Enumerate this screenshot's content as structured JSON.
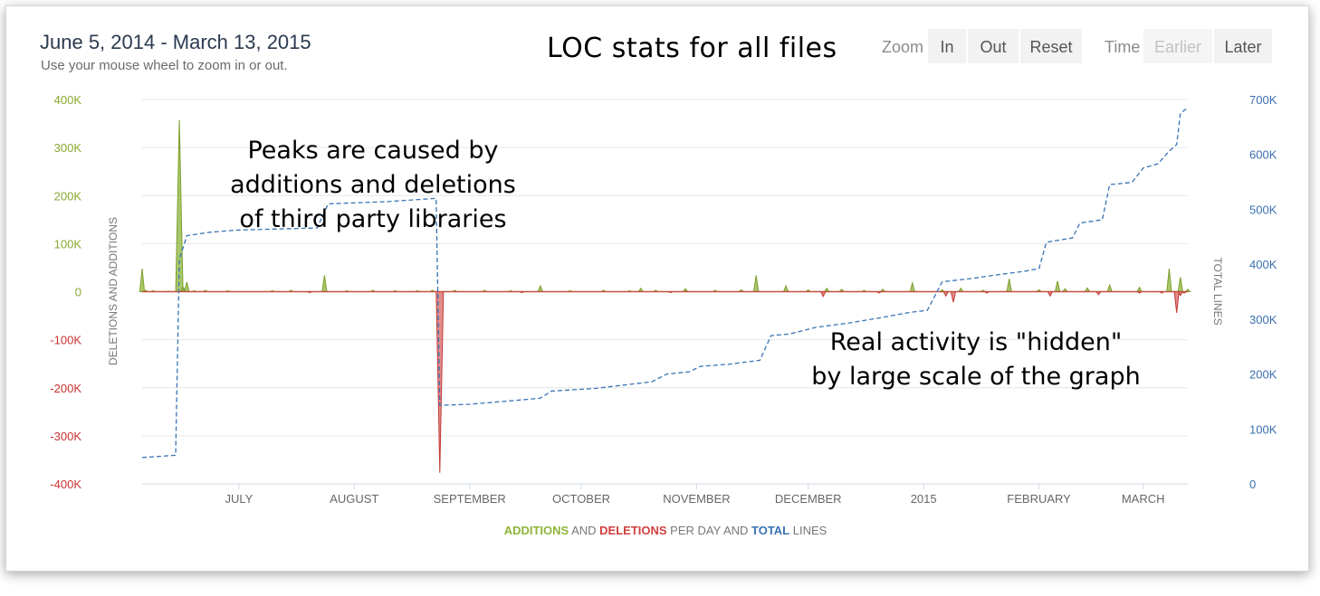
{
  "header": {
    "date_range": "June 5, 2014 - March 13, 2015",
    "hint": "Use your mouse wheel to zoom in or out.",
    "title": "LOC stats for all files"
  },
  "controls": {
    "zoom_label": "Zoom",
    "zoom_in": "In",
    "zoom_out": "Out",
    "zoom_reset": "Reset",
    "time_label": "Time",
    "time_earlier": "Earlier",
    "time_later": "Later"
  },
  "annotations": {
    "peaks": [
      "Peaks are caused by",
      "additions and deletions",
      "of third party libraries"
    ],
    "hidden": [
      "Real activity is \"hidden\"",
      "by large scale of the graph"
    ]
  },
  "chart_data": {
    "type": "area",
    "colors": {
      "additions": "#8fb43a",
      "deletions": "#d0403f",
      "total": "#3a73b4",
      "left_axis_pos": "#8aa832",
      "left_axis_neg": "#c9332f",
      "right_axis": "#3a6fb0"
    },
    "left_axis": {
      "label": "DELETIONS AND ADDITIONS",
      "ylim": [
        -400000,
        400000
      ],
      "ticks": [
        400000,
        300000,
        200000,
        100000,
        0,
        -100000,
        -200000,
        -300000,
        -400000
      ],
      "tick_labels": [
        "400K",
        "300K",
        "200K",
        "100K",
        "0",
        "-100K",
        "-200K",
        "-300K",
        "-400K"
      ]
    },
    "right_axis": {
      "label": "TOTAL LINES",
      "ylim": [
        0,
        700000
      ],
      "ticks": [
        700000,
        600000,
        500000,
        400000,
        300000,
        200000,
        100000,
        0
      ],
      "tick_labels": [
        "700K",
        "600K",
        "500K",
        "400K",
        "300K",
        "200K",
        "100K",
        "0"
      ]
    },
    "x_axis": {
      "start": "2014-06-05",
      "end": "2015-03-13",
      "ticks": [
        {
          "date": "2014-07-01",
          "label": "JULY"
        },
        {
          "date": "2014-08-01",
          "label": "AUGUST"
        },
        {
          "date": "2014-09-01",
          "label": "SEPTEMBER"
        },
        {
          "date": "2014-10-01",
          "label": "OCTOBER"
        },
        {
          "date": "2014-11-01",
          "label": "NOVEMBER"
        },
        {
          "date": "2014-12-01",
          "label": "DECEMBER"
        },
        {
          "date": "2015-01-01",
          "label": "2015"
        },
        {
          "date": "2015-02-01",
          "label": "FEBRUARY"
        },
        {
          "date": "2015-03-01",
          "label": "MARCH"
        }
      ]
    },
    "legend": [
      {
        "text": "ADDITIONS",
        "role": "additions"
      },
      {
        "text": " AND ",
        "role": "plain"
      },
      {
        "text": "DELETIONS",
        "role": "deletions"
      },
      {
        "text": " PER DAY AND ",
        "role": "plain"
      },
      {
        "text": "TOTAL",
        "role": "total"
      },
      {
        "text": " LINES",
        "role": "plain"
      }
    ],
    "additions": [
      [
        "2014-06-05",
        48000
      ],
      [
        "2014-06-06",
        3000
      ],
      [
        "2014-06-08",
        2000
      ],
      [
        "2014-06-12",
        1000
      ],
      [
        "2014-06-15",
        357000
      ],
      [
        "2014-06-16",
        10000
      ],
      [
        "2014-06-17",
        20000
      ],
      [
        "2014-06-19",
        2000
      ],
      [
        "2014-06-22",
        3000
      ],
      [
        "2014-06-28",
        2000
      ],
      [
        "2014-07-10",
        2000
      ],
      [
        "2014-07-15",
        3000
      ],
      [
        "2014-07-24",
        34000
      ],
      [
        "2014-07-30",
        2000
      ],
      [
        "2014-08-06",
        3000
      ],
      [
        "2014-08-12",
        2000
      ],
      [
        "2014-08-18",
        2000
      ],
      [
        "2014-08-22",
        3000
      ],
      [
        "2014-08-28",
        3000
      ],
      [
        "2014-09-05",
        3000
      ],
      [
        "2014-09-12",
        2000
      ],
      [
        "2014-09-20",
        12000
      ],
      [
        "2014-09-28",
        2000
      ],
      [
        "2014-10-07",
        3000
      ],
      [
        "2014-10-14",
        2000
      ],
      [
        "2014-10-17",
        7000
      ],
      [
        "2014-10-21",
        3000
      ],
      [
        "2014-10-29",
        6000
      ],
      [
        "2014-11-06",
        3000
      ],
      [
        "2014-11-13",
        4000
      ],
      [
        "2014-11-17",
        34000
      ],
      [
        "2014-11-25",
        12000
      ],
      [
        "2014-12-01",
        4000
      ],
      [
        "2014-12-06",
        7000
      ],
      [
        "2014-12-10",
        5000
      ],
      [
        "2014-12-16",
        3000
      ],
      [
        "2014-12-21",
        5000
      ],
      [
        "2014-12-29",
        18000
      ],
      [
        "2015-01-06",
        4000
      ],
      [
        "2015-01-11",
        7000
      ],
      [
        "2015-01-17",
        3000
      ],
      [
        "2015-01-24",
        27000
      ],
      [
        "2015-02-01",
        4000
      ],
      [
        "2015-02-06",
        22000
      ],
      [
        "2015-02-08",
        6000
      ],
      [
        "2015-02-14",
        8000
      ],
      [
        "2015-02-20",
        14000
      ],
      [
        "2015-02-28",
        9000
      ],
      [
        "2015-03-08",
        48000
      ],
      [
        "2015-03-11",
        30000
      ],
      [
        "2015-03-13",
        5000
      ]
    ],
    "deletions": [
      [
        "2014-08-24",
        -377000
      ],
      [
        "2014-07-20",
        -2000
      ],
      [
        "2014-09-15",
        -2000
      ],
      [
        "2014-10-25",
        -2000
      ],
      [
        "2014-12-05",
        -10000
      ],
      [
        "2014-12-20",
        -3000
      ],
      [
        "2015-01-07",
        -9000
      ],
      [
        "2015-01-09",
        -22000
      ],
      [
        "2015-01-18",
        -3000
      ],
      [
        "2015-02-04",
        -9000
      ],
      [
        "2015-02-17",
        -6000
      ],
      [
        "2015-02-28",
        -3000
      ],
      [
        "2015-03-06",
        -3000
      ],
      [
        "2015-03-10",
        -44000
      ],
      [
        "2015-03-11",
        -8000
      ],
      [
        "2015-03-12",
        -3000
      ]
    ],
    "total": [
      [
        "2014-06-05",
        48000
      ],
      [
        "2014-06-14",
        52000
      ],
      [
        "2014-06-15",
        410000
      ],
      [
        "2014-06-16",
        430000
      ],
      [
        "2014-06-17",
        452000
      ],
      [
        "2014-06-23",
        458000
      ],
      [
        "2014-06-30",
        462000
      ],
      [
        "2014-07-10",
        464000
      ],
      [
        "2014-07-22",
        466000
      ],
      [
        "2014-07-25",
        510000
      ],
      [
        "2014-08-10",
        514000
      ],
      [
        "2014-08-23",
        520000
      ],
      [
        "2014-08-24",
        143000
      ],
      [
        "2014-09-01",
        145000
      ],
      [
        "2014-09-10",
        150000
      ],
      [
        "2014-09-20",
        156000
      ],
      [
        "2014-09-23",
        169000
      ],
      [
        "2014-10-05",
        174000
      ],
      [
        "2014-10-20",
        186000
      ],
      [
        "2014-10-24",
        200000
      ],
      [
        "2014-10-30",
        204000
      ],
      [
        "2014-11-02",
        214000
      ],
      [
        "2014-11-10",
        218000
      ],
      [
        "2014-11-18",
        225000
      ],
      [
        "2014-11-21",
        270000
      ],
      [
        "2014-11-26",
        273000
      ],
      [
        "2014-12-03",
        285000
      ],
      [
        "2014-12-12",
        293000
      ],
      [
        "2014-12-20",
        302000
      ],
      [
        "2014-12-28",
        312000
      ],
      [
        "2015-01-02",
        316000
      ],
      [
        "2015-01-06",
        368000
      ],
      [
        "2015-01-14",
        374000
      ],
      [
        "2015-01-20",
        380000
      ],
      [
        "2015-01-28",
        387000
      ],
      [
        "2015-02-01",
        392000
      ],
      [
        "2015-02-03",
        440000
      ],
      [
        "2015-02-10",
        448000
      ],
      [
        "2015-02-12",
        475000
      ],
      [
        "2015-02-18",
        481000
      ],
      [
        "2015-02-20",
        545000
      ],
      [
        "2015-02-26",
        549000
      ],
      [
        "2015-03-01",
        575000
      ],
      [
        "2015-03-05",
        583000
      ],
      [
        "2015-03-08",
        606000
      ],
      [
        "2015-03-10",
        618000
      ],
      [
        "2015-03-11",
        675000
      ],
      [
        "2015-03-13",
        685000
      ]
    ]
  }
}
